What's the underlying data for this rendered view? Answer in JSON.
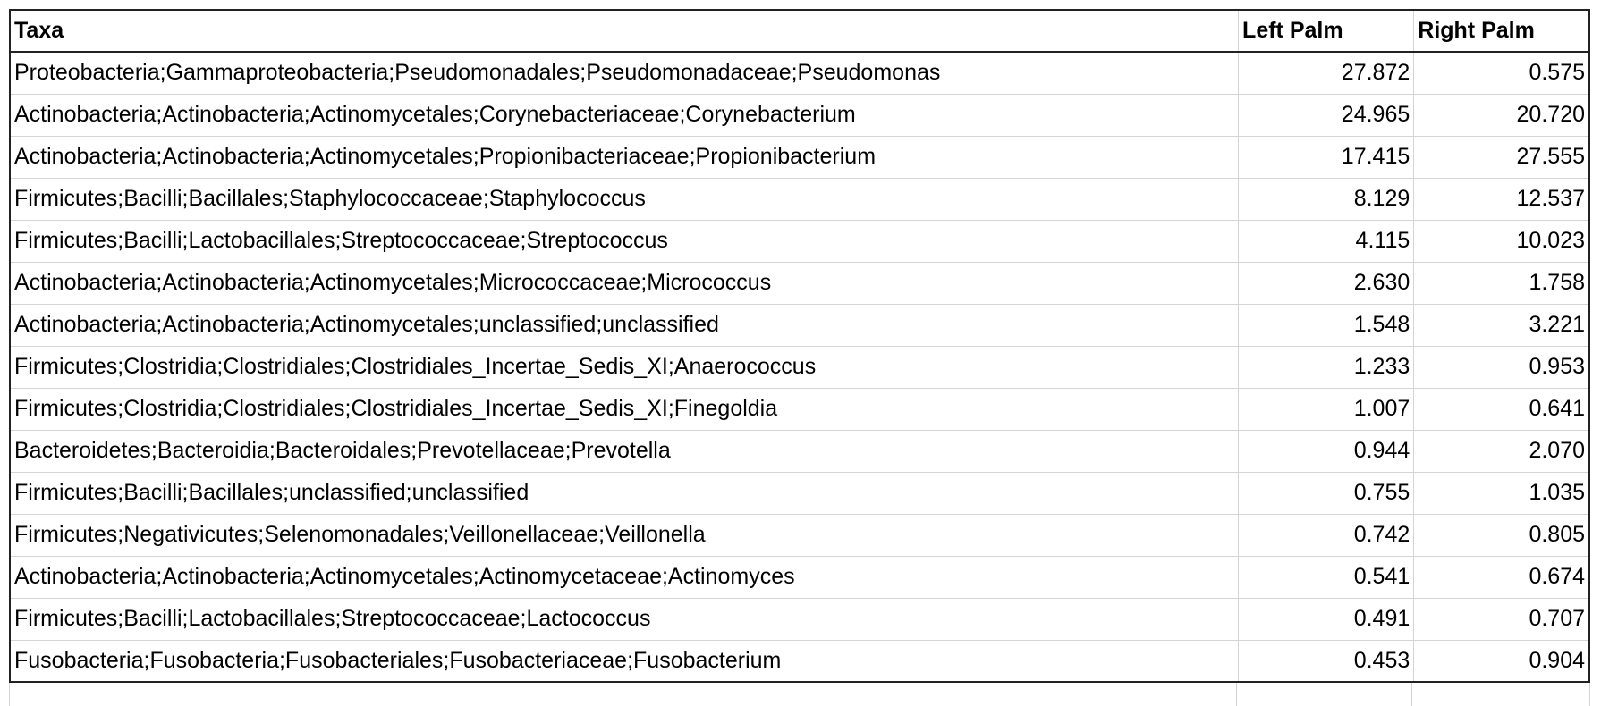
{
  "table": {
    "headers": [
      "Taxa",
      "Left Palm",
      "Right Palm"
    ],
    "rows": [
      [
        "Proteobacteria;Gammaproteobacteria;Pseudomonadales;Pseudomonadaceae;Pseudomonas",
        "27.872",
        "0.575"
      ],
      [
        "Actinobacteria;Actinobacteria;Actinomycetales;Corynebacteriaceae;Corynebacterium",
        "24.965",
        "20.720"
      ],
      [
        "Actinobacteria;Actinobacteria;Actinomycetales;Propionibacteriaceae;Propionibacterium",
        "17.415",
        "27.555"
      ],
      [
        "Firmicutes;Bacilli;Bacillales;Staphylococcaceae;Staphylococcus",
        "8.129",
        "12.537"
      ],
      [
        "Firmicutes;Bacilli;Lactobacillales;Streptococcaceae;Streptococcus",
        "4.115",
        "10.023"
      ],
      [
        "Actinobacteria;Actinobacteria;Actinomycetales;Micrococcaceae;Micrococcus",
        "2.630",
        "1.758"
      ],
      [
        "Actinobacteria;Actinobacteria;Actinomycetales;unclassified;unclassified",
        "1.548",
        "3.221"
      ],
      [
        "Firmicutes;Clostridia;Clostridiales;Clostridiales_Incertae_Sedis_XI;Anaerococcus",
        "1.233",
        "0.953"
      ],
      [
        "Firmicutes;Clostridia;Clostridiales;Clostridiales_Incertae_Sedis_XI;Finegoldia",
        "1.007",
        "0.641"
      ],
      [
        "Bacteroidetes;Bacteroidia;Bacteroidales;Prevotellaceae;Prevotella",
        "0.944",
        "2.070"
      ],
      [
        "Firmicutes;Bacilli;Bacillales;unclassified;unclassified",
        "0.755",
        "1.035"
      ],
      [
        "Firmicutes;Negativicutes;Selenomonadales;Veillonellaceae;Veillonella",
        "0.742",
        "0.805"
      ],
      [
        "Actinobacteria;Actinobacteria;Actinomycetales;Actinomycetaceae;Actinomyces",
        "0.541",
        "0.674"
      ],
      [
        "Firmicutes;Bacilli;Lactobacillales;Streptococcaceae;Lactococcus",
        "0.491",
        "0.707"
      ],
      [
        "Fusobacteria;Fusobacteria;Fusobacteriales;Fusobacteriaceae;Fusobacterium",
        "0.453",
        "0.904"
      ]
    ]
  }
}
